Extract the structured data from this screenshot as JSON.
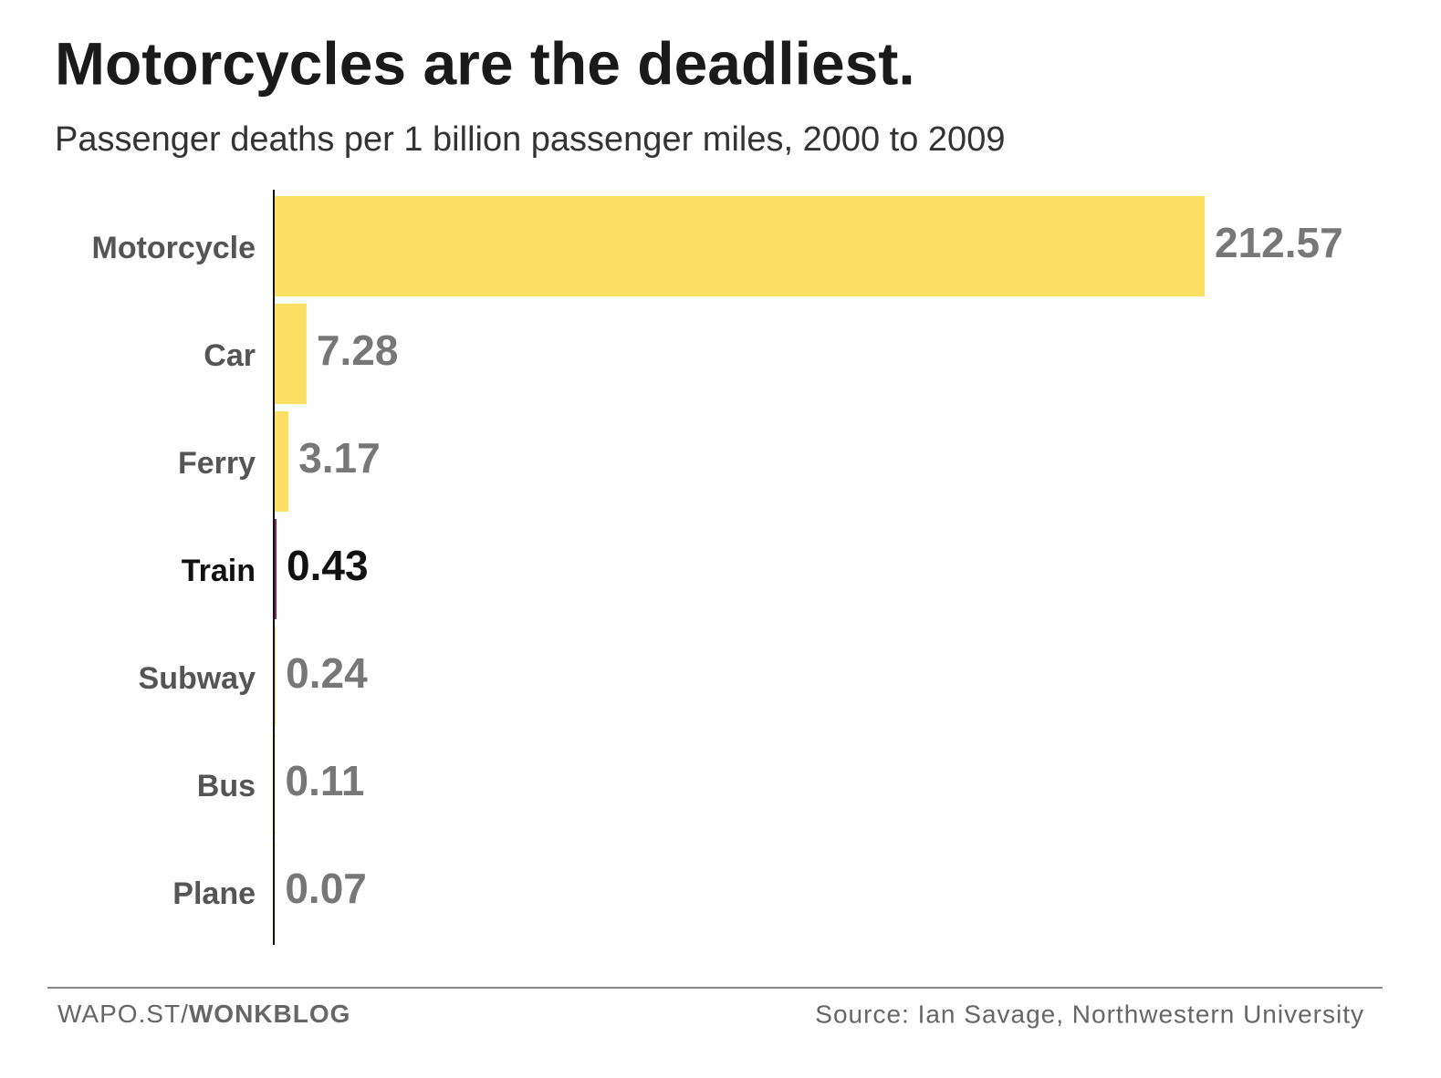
{
  "chart_data": {
    "type": "bar",
    "orientation": "horizontal",
    "title": "Motorcycles are the deadliest.",
    "subtitle": "Passenger deaths per 1 billion passenger miles, 2000 to 2009",
    "categories": [
      "Motorcycle",
      "Car",
      "Ferry",
      "Train",
      "Subway",
      "Bus",
      "Plane"
    ],
    "values": [
      212.57,
      7.28,
      3.17,
      0.43,
      0.24,
      0.11,
      0.07
    ],
    "colors": [
      "#fde063",
      "#fde063",
      "#fde063",
      "#7b2d5e",
      "#fde063",
      "#fde063",
      "#fde063"
    ],
    "label_colors": [
      "#777777",
      "#777777",
      "#777777",
      "#111111",
      "#777777",
      "#777777",
      "#777777"
    ],
    "category_colors": [
      "#555555",
      "#555555",
      "#555555",
      "#111111",
      "#555555",
      "#555555",
      "#555555"
    ],
    "credit": {
      "site": "WAPO.ST/",
      "blog": "WONKBLOG"
    },
    "source": "Source: Ian Savage, Northwestern University"
  }
}
